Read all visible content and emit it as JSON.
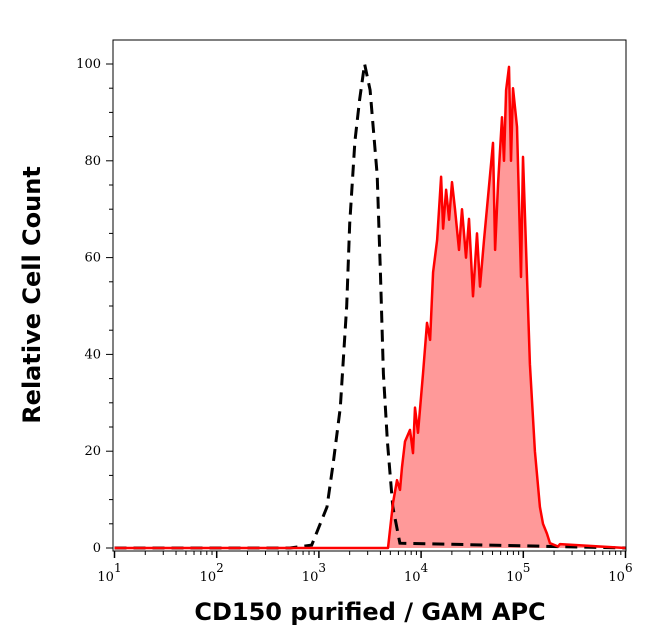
{
  "chart_data": {
    "type": "area",
    "xlabel": "CD150 purified / GAM APC",
    "ylabel": "Relative Cell Count",
    "xscale": "log",
    "xlim": [
      10,
      1000000
    ],
    "ylim": [
      0,
      105
    ],
    "xticks": [
      {
        "base": "10",
        "exp": "1",
        "v": 10
      },
      {
        "base": "10",
        "exp": "2",
        "v": 100
      },
      {
        "base": "10",
        "exp": "3",
        "v": 1000
      },
      {
        "base": "10",
        "exp": "4",
        "v": 10000
      },
      {
        "base": "10",
        "exp": "5",
        "v": 100000
      },
      {
        "base": "10",
        "exp": "6",
        "v": 1000000
      }
    ],
    "yticks": [
      "0",
      "20",
      "40",
      "60",
      "80",
      "100"
    ],
    "grid": false,
    "colors": {
      "negative_line": "#000000",
      "positive_line": "#ff0000",
      "positive_fill": "#ff9999"
    },
    "series": [
      {
        "style": "dashed-line",
        "x": [
          10,
          522,
          851,
          1200,
          1380,
          1620,
          1870,
          2000,
          2250,
          2500,
          2800,
          3170,
          3720,
          4000,
          4280,
          4680,
          5290,
          6200,
          1000000
        ],
        "y": [
          0,
          0,
          0.6,
          8.5,
          17.5,
          29,
          50,
          67,
          84,
          92.6,
          100,
          94.6,
          77,
          57,
          36,
          22,
          8.5,
          1,
          0
        ]
      },
      {
        "style": "filled-area",
        "x": [
          10,
          4740,
          5310,
          5810,
          6220,
          6510,
          6960,
          7790,
          8330,
          8720,
          9330,
          10440,
          11430,
          12240,
          13100,
          14330,
          15680,
          16410,
          17550,
          18780,
          20060,
          21460,
          23490,
          25120,
          27490,
          29430,
          32190,
          35230,
          37740,
          41280,
          45170,
          50580,
          52950,
          56640,
          61950,
          64740,
          67800,
          72470,
          75820,
          79290,
          86700,
          94900,
          99300,
          116000,
          130000,
          145500,
          155700,
          170300,
          182300,
          218300,
          228400,
          1000000
        ],
        "y": [
          0,
          0,
          9.3,
          14,
          12,
          16.7,
          22,
          24.4,
          19.6,
          29,
          23.8,
          36,
          46.5,
          43,
          57,
          63.6,
          76.7,
          66,
          74,
          67.8,
          75.6,
          70,
          61.6,
          70,
          60,
          68,
          52,
          65,
          54,
          63.6,
          72.5,
          83.7,
          61.6,
          75.4,
          89,
          80,
          94.6,
          99.4,
          80,
          95,
          87,
          56,
          80.8,
          38,
          20,
          8.5,
          5,
          3,
          1,
          0.3,
          0.8,
          0
        ]
      }
    ]
  }
}
